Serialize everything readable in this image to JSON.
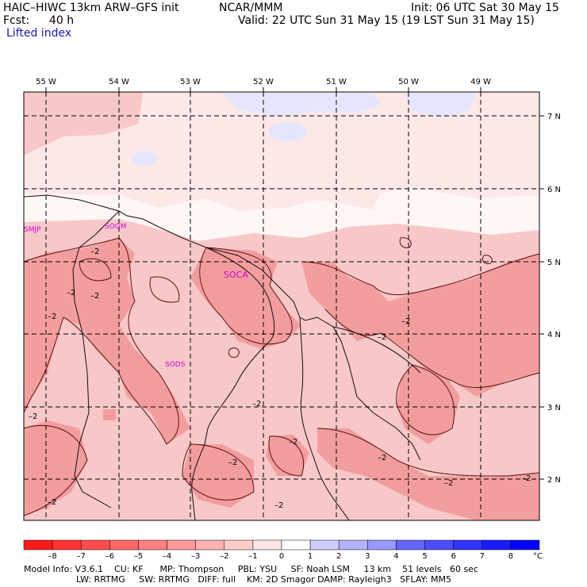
{
  "header": {
    "model_title": "HAIC–HIWC 13km ARW–GFS init",
    "org": "NCAR/MMM",
    "init": "Init: 06 UTC Sat 30 May 15",
    "fcst_label": "Fcst:",
    "fcst_value": "40 h",
    "valid": "Valid: 22 UTC Sun 31 May 15 (19 LST Sun 31 May 15)",
    "field": "Lifted index"
  },
  "map": {
    "lon_labels": [
      "55 W",
      "54 W",
      "53 W",
      "52 W",
      "51 W",
      "50 W",
      "49 W"
    ],
    "lat_labels": [
      "7 N",
      "6 N",
      "5 N",
      "4 N",
      "3 N",
      "2 N"
    ],
    "stations": [
      "SMJP",
      "SOGM",
      "SOCA",
      "SODS"
    ],
    "contour_label": "–2",
    "colors": {
      "light": "#fde8e8",
      "mid": "#f8c8c8",
      "dark": "#f29696",
      "blue": "#e4e6ff"
    }
  },
  "colorbar": {
    "ticks": [
      "–8",
      "–7",
      "–6",
      "–5",
      "–4",
      "–3",
      "–2",
      "–1",
      "0",
      "1",
      "2",
      "3",
      "4",
      "5",
      "6",
      "7",
      "8"
    ],
    "unit": "°C",
    "colors": [
      "#ff1a1a",
      "#ff3333",
      "#ff4d4d",
      "#ff6666",
      "#ff8080",
      "#ff9999",
      "#ffb3b3",
      "#ffcccc",
      "#ffe6e6",
      "#ffffff",
      "#ccccff",
      "#b3b3ff",
      "#9999ff",
      "#6666ff",
      "#4d4dff",
      "#3333ff",
      "#1a1aff",
      "#0000ff"
    ]
  },
  "footer": {
    "line1": "Model Info: V3.6.1    CU: KF      MP: Thompson     PBL: YSU     SF: Noah LSM     13 km    51 levels   60 sec",
    "line2": "LW: RRTMG     SW: RRTMG   DIFF: full    KM: 2D Smagor DAMP: Rayleigh3   SFLAY: MM5"
  }
}
